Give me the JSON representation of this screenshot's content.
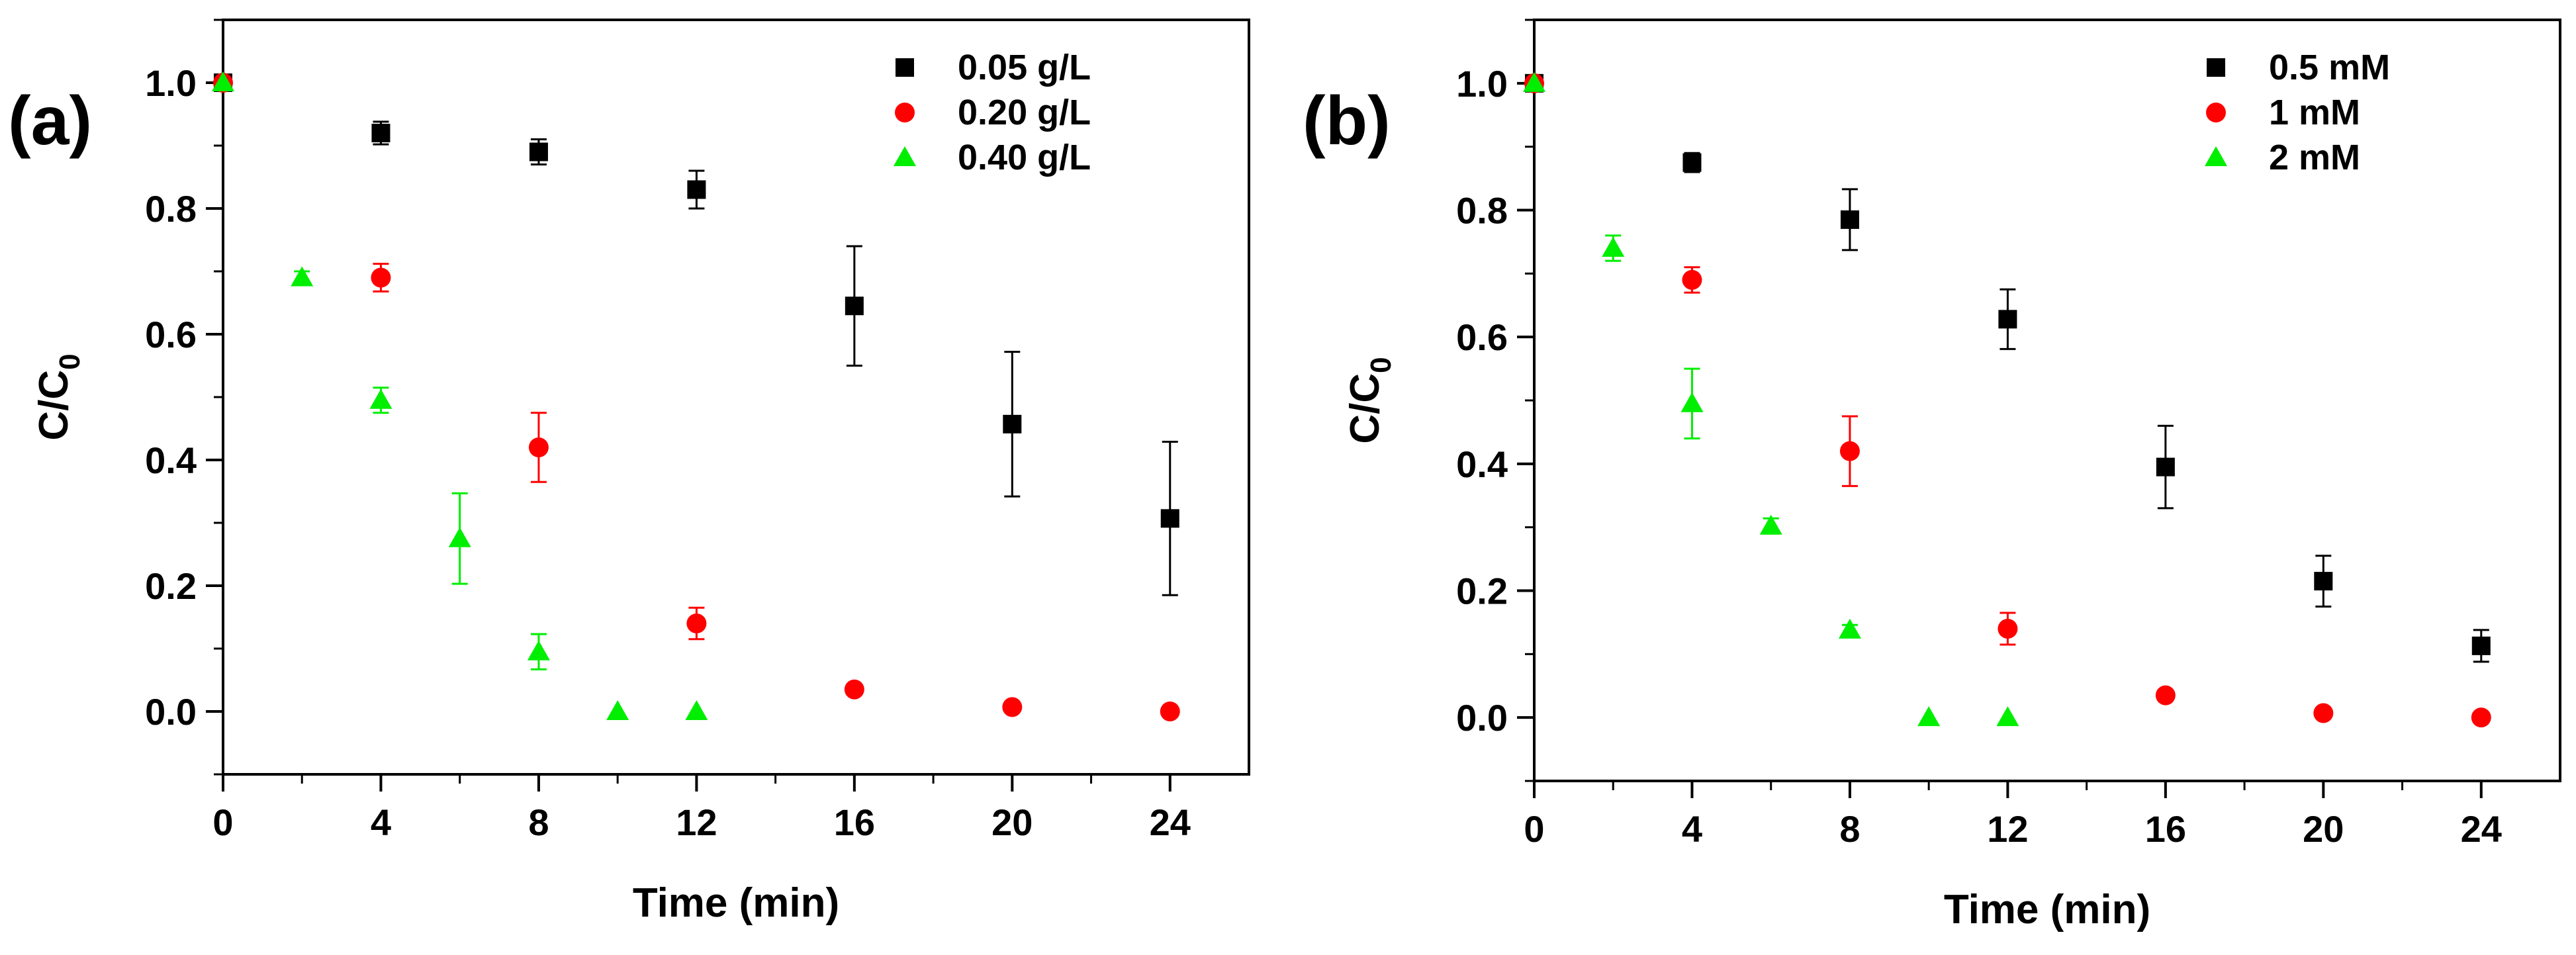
{
  "chart_data": [
    {
      "type": "scatter",
      "panel_label": "(a)",
      "xlabel": "Time (min)",
      "ylabel": "C/C",
      "ylabel_sub": "0",
      "xlim": [
        0,
        26
      ],
      "ylim": [
        -0.1,
        1.1
      ],
      "xticks": [
        0,
        4,
        8,
        12,
        16,
        20,
        24
      ],
      "yticks": [
        0.0,
        0.2,
        0.4,
        0.6,
        0.8,
        1.0
      ],
      "legend_position": "top-right",
      "series": [
        {
          "name": "0.05 g/L",
          "marker": "square",
          "color": "#000000",
          "x": [
            0,
            4,
            8,
            12,
            16,
            20,
            24
          ],
          "y": [
            1.0,
            0.92,
            0.89,
            0.83,
            0.645,
            0.457,
            0.307
          ],
          "err": [
            0,
            0.018,
            0.02,
            0.03,
            0.095,
            0.115,
            0.122
          ]
        },
        {
          "name": "0.20 g/L",
          "marker": "circle",
          "color": "#ff0000",
          "x": [
            0,
            4,
            8,
            12,
            16,
            20,
            24
          ],
          "y": [
            1.0,
            0.69,
            0.42,
            0.14,
            0.035,
            0.007,
            0.0
          ],
          "err": [
            0,
            0.022,
            0.055,
            0.025,
            0,
            0,
            0
          ]
        },
        {
          "name": "0.40 g/L",
          "marker": "triangle",
          "color": "#00ee00",
          "x": [
            0,
            2,
            4,
            6,
            8,
            10,
            12
          ],
          "y": [
            1.0,
            0.69,
            0.495,
            0.275,
            0.095,
            0.0,
            0.0
          ],
          "err": [
            0,
            0.01,
            0.02,
            0.072,
            0.028,
            0,
            0
          ]
        }
      ]
    },
    {
      "type": "scatter",
      "panel_label": "(b)",
      "xlabel": "Time (min)",
      "ylabel": "C/C",
      "ylabel_sub": "0",
      "xlim": [
        0,
        26
      ],
      "ylim": [
        -0.1,
        1.1
      ],
      "xticks": [
        0,
        4,
        8,
        12,
        16,
        20,
        24
      ],
      "yticks": [
        0.0,
        0.2,
        0.4,
        0.6,
        0.8,
        1.0
      ],
      "legend_position": "top-right",
      "series": [
        {
          "name": "0.5 mM",
          "marker": "square",
          "color": "#000000",
          "x": [
            0,
            4,
            8,
            12,
            16,
            20,
            24
          ],
          "y": [
            1.0,
            0.875,
            0.785,
            0.628,
            0.395,
            0.215,
            0.113
          ],
          "err": [
            0,
            0.015,
            0.048,
            0.047,
            0.065,
            0.04,
            0.025
          ]
        },
        {
          "name": "1 mM",
          "marker": "circle",
          "color": "#ff0000",
          "x": [
            0,
            4,
            8,
            12,
            16,
            20,
            24
          ],
          "y": [
            1.0,
            0.69,
            0.42,
            0.14,
            0.035,
            0.007,
            0.0
          ],
          "err": [
            0,
            0.02,
            0.055,
            0.025,
            0,
            0,
            0
          ]
        },
        {
          "name": "2 mM",
          "marker": "triangle",
          "color": "#00ee00",
          "x": [
            0,
            2,
            4,
            6,
            8,
            10,
            12
          ],
          "y": [
            1.0,
            0.74,
            0.495,
            0.302,
            0.138,
            0.0,
            0.0
          ],
          "err": [
            0,
            0.02,
            0.055,
            0.012,
            0.008,
            0,
            0
          ]
        }
      ]
    }
  ]
}
